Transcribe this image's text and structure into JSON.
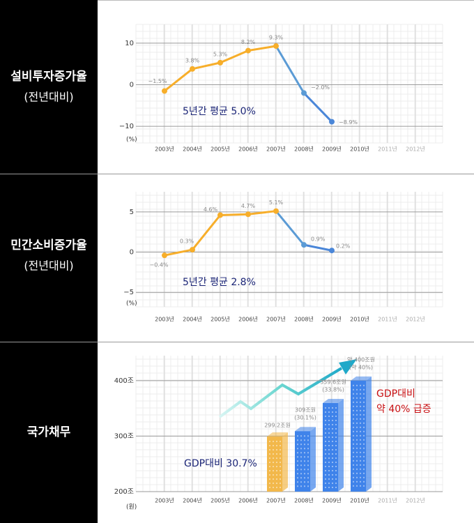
{
  "panels": [
    {
      "title": "설비투자증가율",
      "subtitle": "(전년대비)"
    },
    {
      "title": "민간소비증가율",
      "subtitle": "(전년대비)"
    },
    {
      "title": "국가채무"
    }
  ],
  "chart_data": [
    {
      "type": "line",
      "categories": [
        "2003년",
        "2004년",
        "2005년",
        "2006년",
        "2007년",
        "2008년",
        "2009년",
        "2010년",
        "2011년",
        "2012년"
      ],
      "category_colors": [
        "#444",
        "#444",
        "#444",
        "#444",
        "#444",
        "#444",
        "#444",
        "#444",
        "#aaa",
        "#aaa"
      ],
      "series": [
        {
          "values": [
            -1.5,
            3.8,
            5.3,
            8.2,
            9.3,
            -2.0,
            -8.9,
            null,
            null,
            null
          ],
          "value_labels": [
            "−1.5%",
            "3.8%",
            "5.3%",
            "8.2%",
            "9.3%",
            "−2.0%",
            "−8.9%",
            null,
            null,
            null
          ],
          "colors": [
            "#f7ae2a",
            "#f7ae2a",
            "#f7ae2a",
            "#f7ae2a",
            "#f7ae2a",
            "#5b9bd5",
            "#4a86d8",
            null,
            null,
            null
          ]
        }
      ],
      "ylim": [
        -14,
        14.5
      ],
      "yticks": [
        10,
        0,
        {
          "value": -10,
          "label": "−10"
        }
      ],
      "unit": "(%)",
      "annotation": "5년간 평균 5.0%",
      "grid": true
    },
    {
      "type": "line",
      "categories": [
        "2003년",
        "2004년",
        "2005년",
        "2006년",
        "2007년",
        "2008년",
        "2009년",
        "2010년",
        "2011년",
        "2012년"
      ],
      "category_colors": [
        "#444",
        "#444",
        "#444",
        "#444",
        "#444",
        "#444",
        "#444",
        "#444",
        "#aaa",
        "#aaa"
      ],
      "series": [
        {
          "values": [
            -0.4,
            0.3,
            4.6,
            4.7,
            5.1,
            0.9,
            0.2,
            null,
            null,
            null
          ],
          "value_labels": [
            "−0.4%",
            "0.3%",
            "4.6%",
            "4.7%",
            "5.1%",
            "0.9%",
            "0.2%",
            null,
            null,
            null
          ],
          "colors": [
            "#f7ae2a",
            "#f7ae2a",
            "#f7ae2a",
            "#f7ae2a",
            "#f7ae2a",
            "#5b9bd5",
            "#4a86d8",
            null,
            null,
            null
          ]
        }
      ],
      "ylim": [
        -6.8,
        7.5
      ],
      "yticks": [
        5,
        0,
        {
          "value": -5,
          "label": "−5"
        }
      ],
      "unit": "(%)",
      "annotation": "5년간 평균 2.8%",
      "grid": true
    },
    {
      "type": "bar",
      "categories": [
        "2003년",
        "2004년",
        "2005년",
        "2006년",
        "2007년",
        "2008년",
        "2009년",
        "2010년",
        "2011년",
        "2012년"
      ],
      "category_colors": [
        "#444",
        "#444",
        "#444",
        "#444",
        "#444",
        "#444",
        "#444",
        "#444",
        "#aaa",
        "#aaa"
      ],
      "series": [
        {
          "values": [
            null,
            null,
            null,
            null,
            299.2,
            309,
            359.6,
            400,
            null,
            null
          ],
          "value_labels": [
            null,
            null,
            null,
            null,
            "299.2조원",
            "309조원",
            "359.6조원",
            "약 400조원",
            null,
            null
          ],
          "shares": [
            null,
            null,
            null,
            null,
            null,
            "(30.1%)",
            "(33.8%)",
            "(약 40%)",
            null,
            null
          ],
          "colors": [
            null,
            null,
            null,
            null,
            "#f2b84b",
            "#3f83ea",
            "#3f83ea",
            "#3f83ea",
            null,
            null
          ]
        }
      ],
      "ylim": [
        200,
        445
      ],
      "yticks": [
        {
          "value": 400,
          "label": "400조"
        },
        {
          "value": 300,
          "label": "300조"
        },
        {
          "value": 200,
          "label": "200조"
        }
      ],
      "unit": "(원)",
      "annotation": "GDP대비 30.7%",
      "annotation2": [
        "GDP대비",
        "약 40% 급증"
      ],
      "grid": true
    }
  ]
}
